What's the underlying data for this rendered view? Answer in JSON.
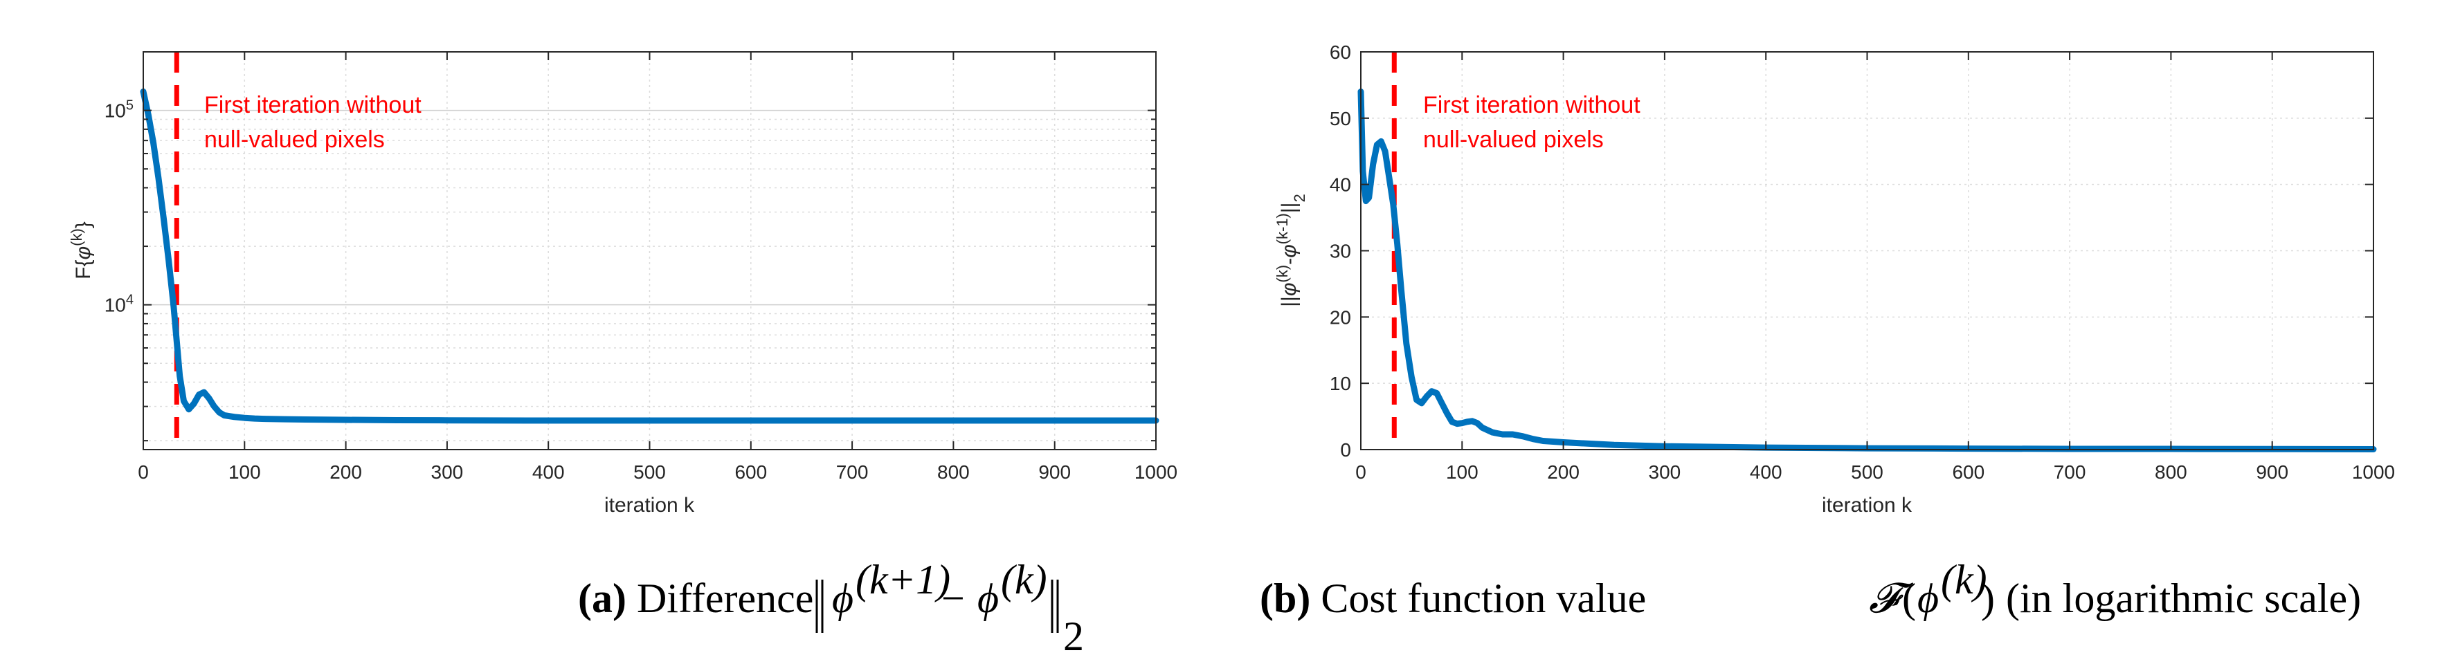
{
  "chart_data": [
    {
      "id": "a",
      "type": "line",
      "yscale": "log",
      "xlabel": "iteration k",
      "ylabel_text": "F{φ(k)}",
      "ylabel_base": "F{",
      "ylabel_var": "φ",
      "ylabel_sup": "(k)",
      "ylabel_end": "}",
      "xlim": [
        0,
        1000
      ],
      "ylim": [
        1800,
        200000
      ],
      "xticks": [
        0,
        100,
        200,
        300,
        400,
        500,
        600,
        700,
        800,
        900,
        1000
      ],
      "ytick_labels": [
        {
          "value": 10000,
          "base": "10",
          "exp": "4"
        },
        {
          "value": 100000,
          "base": "10",
          "exp": "5"
        }
      ],
      "grid": true,
      "series": [
        {
          "name": "F",
          "color": "#0072bd",
          "x": [
            0,
            5,
            10,
            15,
            20,
            25,
            30,
            33,
            36,
            40,
            45,
            50,
            55,
            60,
            65,
            70,
            75,
            80,
            90,
            100,
            110,
            120,
            140,
            160,
            200,
            250,
            300,
            400,
            600,
            800,
            1000
          ],
          "y": [
            125000,
            95000,
            68000,
            45000,
            28000,
            17000,
            9800,
            6500,
            4300,
            3200,
            2900,
            3100,
            3450,
            3550,
            3300,
            3000,
            2800,
            2700,
            2650,
            2620,
            2600,
            2590,
            2580,
            2570,
            2560,
            2550,
            2545,
            2540,
            2540,
            2540,
            2540
          ]
        }
      ],
      "vline": {
        "x": 33,
        "color": "#ff0000",
        "style": "dashed"
      },
      "annotation": [
        "First iteration without",
        "null-valued pixels"
      ],
      "caption": {
        "label": "(a)",
        "text": "Difference"
      }
    },
    {
      "id": "b",
      "type": "line",
      "yscale": "linear",
      "xlabel": "iteration k",
      "ylabel_text": "||φ(k)-φ(k-1)||2",
      "ylabel_parts": [
        "||",
        "φ",
        "(k)",
        "-",
        "φ",
        "(k-1)",
        "||",
        "2"
      ],
      "xlim": [
        0,
        1000
      ],
      "ylim": [
        0,
        60
      ],
      "xticks": [
        0,
        100,
        200,
        300,
        400,
        500,
        600,
        700,
        800,
        900,
        1000
      ],
      "yticks": [
        0,
        10,
        20,
        30,
        40,
        50,
        60
      ],
      "grid": true,
      "series": [
        {
          "name": "diff",
          "color": "#0072bd",
          "x": [
            0,
            2,
            5,
            8,
            12,
            16,
            20,
            24,
            28,
            32,
            36,
            40,
            45,
            50,
            55,
            60,
            65,
            70,
            75,
            80,
            85,
            90,
            95,
            100,
            105,
            110,
            115,
            120,
            130,
            140,
            150,
            160,
            170,
            180,
            200,
            250,
            300,
            400,
            500,
            600,
            700,
            800,
            1000
          ],
          "y": [
            54,
            42,
            37.5,
            38,
            43,
            46,
            46.5,
            45,
            41,
            37,
            31,
            24,
            16,
            11,
            7.5,
            7,
            8,
            8.8,
            8.5,
            7,
            5.5,
            4.2,
            3.9,
            4,
            4.2,
            4.3,
            4.0,
            3.3,
            2.6,
            2.3,
            2.3,
            2.0,
            1.6,
            1.3,
            1.1,
            0.7,
            0.5,
            0.3,
            0.2,
            0.15,
            0.1,
            0.1,
            0.05
          ]
        }
      ],
      "vline": {
        "x": 33,
        "color": "#ff0000",
        "style": "dashed"
      },
      "annotation": [
        "First iteration without",
        "null-valued pixels"
      ],
      "caption": {
        "label": "(b)",
        "text": "Cost function value",
        "suffix": "(in logarithmic scale)"
      }
    }
  ]
}
